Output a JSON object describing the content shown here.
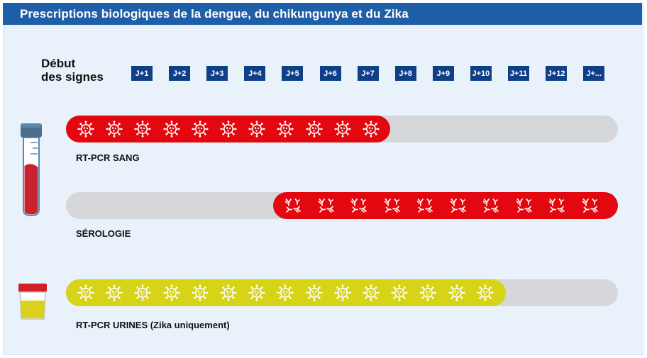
{
  "header": {
    "title": "Prescriptions biologiques de la dengue, du chikungunya et du Zika"
  },
  "timeline": {
    "start_label_line1": "Début",
    "start_label_line2": "des signes",
    "days": [
      "J+1",
      "J+2",
      "J+3",
      "J+4",
      "J+5",
      "J+6",
      "J+7",
      "J+8",
      "J+9",
      "J+10",
      "J+11",
      "J+12",
      "J+..."
    ]
  },
  "tests": [
    {
      "label": "RT-PCR SANG",
      "icon": "virus-icon",
      "color": "#e3080f",
      "start_day": 1,
      "end_day": 7,
      "slots": 11
    },
    {
      "label": "SÉROLOGIE",
      "icon": "antibody-icon",
      "color": "#e3080f",
      "start_day": 5,
      "end_day": 13,
      "slots": 10
    },
    {
      "label": "RT-PCR URINES (Zika uniquement)",
      "icon": "virus-icon",
      "color": "#d7d316",
      "start_day": 1,
      "end_day": 10,
      "slots": 15
    }
  ],
  "illustrations": {
    "blood": "blood-tube-icon",
    "urine": "urine-cup-icon"
  },
  "colors": {
    "header": "#1f5fa8",
    "badge": "#0f3f87",
    "background": "#e9f2fa",
    "track": "#d5d7da",
    "red": "#e3080f",
    "yellow": "#d7d316"
  }
}
